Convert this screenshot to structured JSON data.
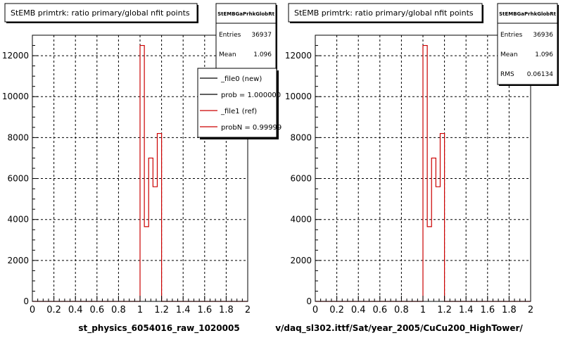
{
  "pads": [
    {
      "title": "StEMB primtrk: ratio primary/global nfit points",
      "stats": {
        "name": "StEMBGaPrhkGlobRt",
        "rows": [
          {
            "label": "Entries",
            "value": "36937"
          },
          {
            "label": "Mean",
            "value": "1.096"
          }
        ]
      },
      "legend": {
        "entries": [
          {
            "text": "_file0 (new)",
            "color": "#000000"
          },
          {
            "text": "prob = 1.000000",
            "color": "#000000"
          },
          {
            "text": "_file1 (ref)",
            "color": "#cc0000"
          },
          {
            "text": "probN = 0.99999",
            "color": "#cc0000"
          }
        ]
      },
      "xlabel": "st_physics_6054016_raw_1020005"
    },
    {
      "title": "StEMB primtrk: ratio primary/global nfit points",
      "stats": {
        "name": "StEMBGaPrhkGlobRt",
        "rows": [
          {
            "label": "Entries",
            "value": "36936"
          },
          {
            "label": "Mean",
            "value": "1.096"
          },
          {
            "label": "RMS",
            "value": "0.06134"
          }
        ]
      },
      "xlabel": "v/daq_sl302.ittf/Sat/year_2005/CuCu200_HighTower/"
    }
  ],
  "chart_data": [
    {
      "type": "bar",
      "title": "StEMB primtrk: ratio primary/global nfit points",
      "xlabel": "st_physics_6054016_raw_1020005",
      "ylabel": "",
      "xlim": [
        0,
        2
      ],
      "ylim": [
        0,
        13000
      ],
      "xticks": [
        0,
        0.2,
        0.4,
        0.6,
        0.8,
        1,
        1.2,
        1.4,
        1.6,
        1.8,
        2
      ],
      "xtick_labels": [
        "0",
        "0.2",
        "0.4",
        "0.6",
        "0.8",
        "1",
        "1.2",
        "1.4",
        "1.6",
        "1.8",
        "2"
      ],
      "yticks": [
        0,
        2000,
        4000,
        6000,
        8000,
        10000,
        12000
      ],
      "ytick_labels": [
        "0",
        "2000",
        "4000",
        "6000",
        "8000",
        "10000",
        "12000"
      ],
      "grid": true,
      "legend_position": "top-right",
      "series": [
        {
          "name": "_file1 (ref)",
          "color": "#cc0000",
          "style": "step",
          "bin_edges": [
            1.0,
            1.04,
            1.08,
            1.12,
            1.16,
            1.2
          ],
          "values": [
            12500,
            3650,
            7000,
            5600,
            8200
          ]
        }
      ]
    },
    {
      "type": "bar",
      "title": "StEMB primtrk: ratio primary/global nfit points",
      "xlabel": "v/daq_sl302.ittf/Sat/year_2005/CuCu200_HighTower/",
      "ylabel": "",
      "xlim": [
        0,
        2
      ],
      "ylim": [
        0,
        13000
      ],
      "xticks": [
        0,
        0.2,
        0.4,
        0.6,
        0.8,
        1,
        1.2,
        1.4,
        1.6,
        1.8,
        2
      ],
      "xtick_labels": [
        "0",
        "0.2",
        "0.4",
        "0.6",
        "0.8",
        "1",
        "1.2",
        "1.4",
        "1.6",
        "1.8",
        "2"
      ],
      "yticks": [
        0,
        2000,
        4000,
        6000,
        8000,
        10000,
        12000
      ],
      "ytick_labels": [
        "0",
        "2000",
        "4000",
        "6000",
        "8000",
        "10000",
        "12000"
      ],
      "grid": true,
      "series": [
        {
          "color": "#cc0000",
          "style": "step",
          "bin_edges": [
            1.0,
            1.04,
            1.08,
            1.12,
            1.16,
            1.2
          ],
          "values": [
            12500,
            3650,
            7000,
            5600,
            8200
          ]
        }
      ]
    }
  ]
}
